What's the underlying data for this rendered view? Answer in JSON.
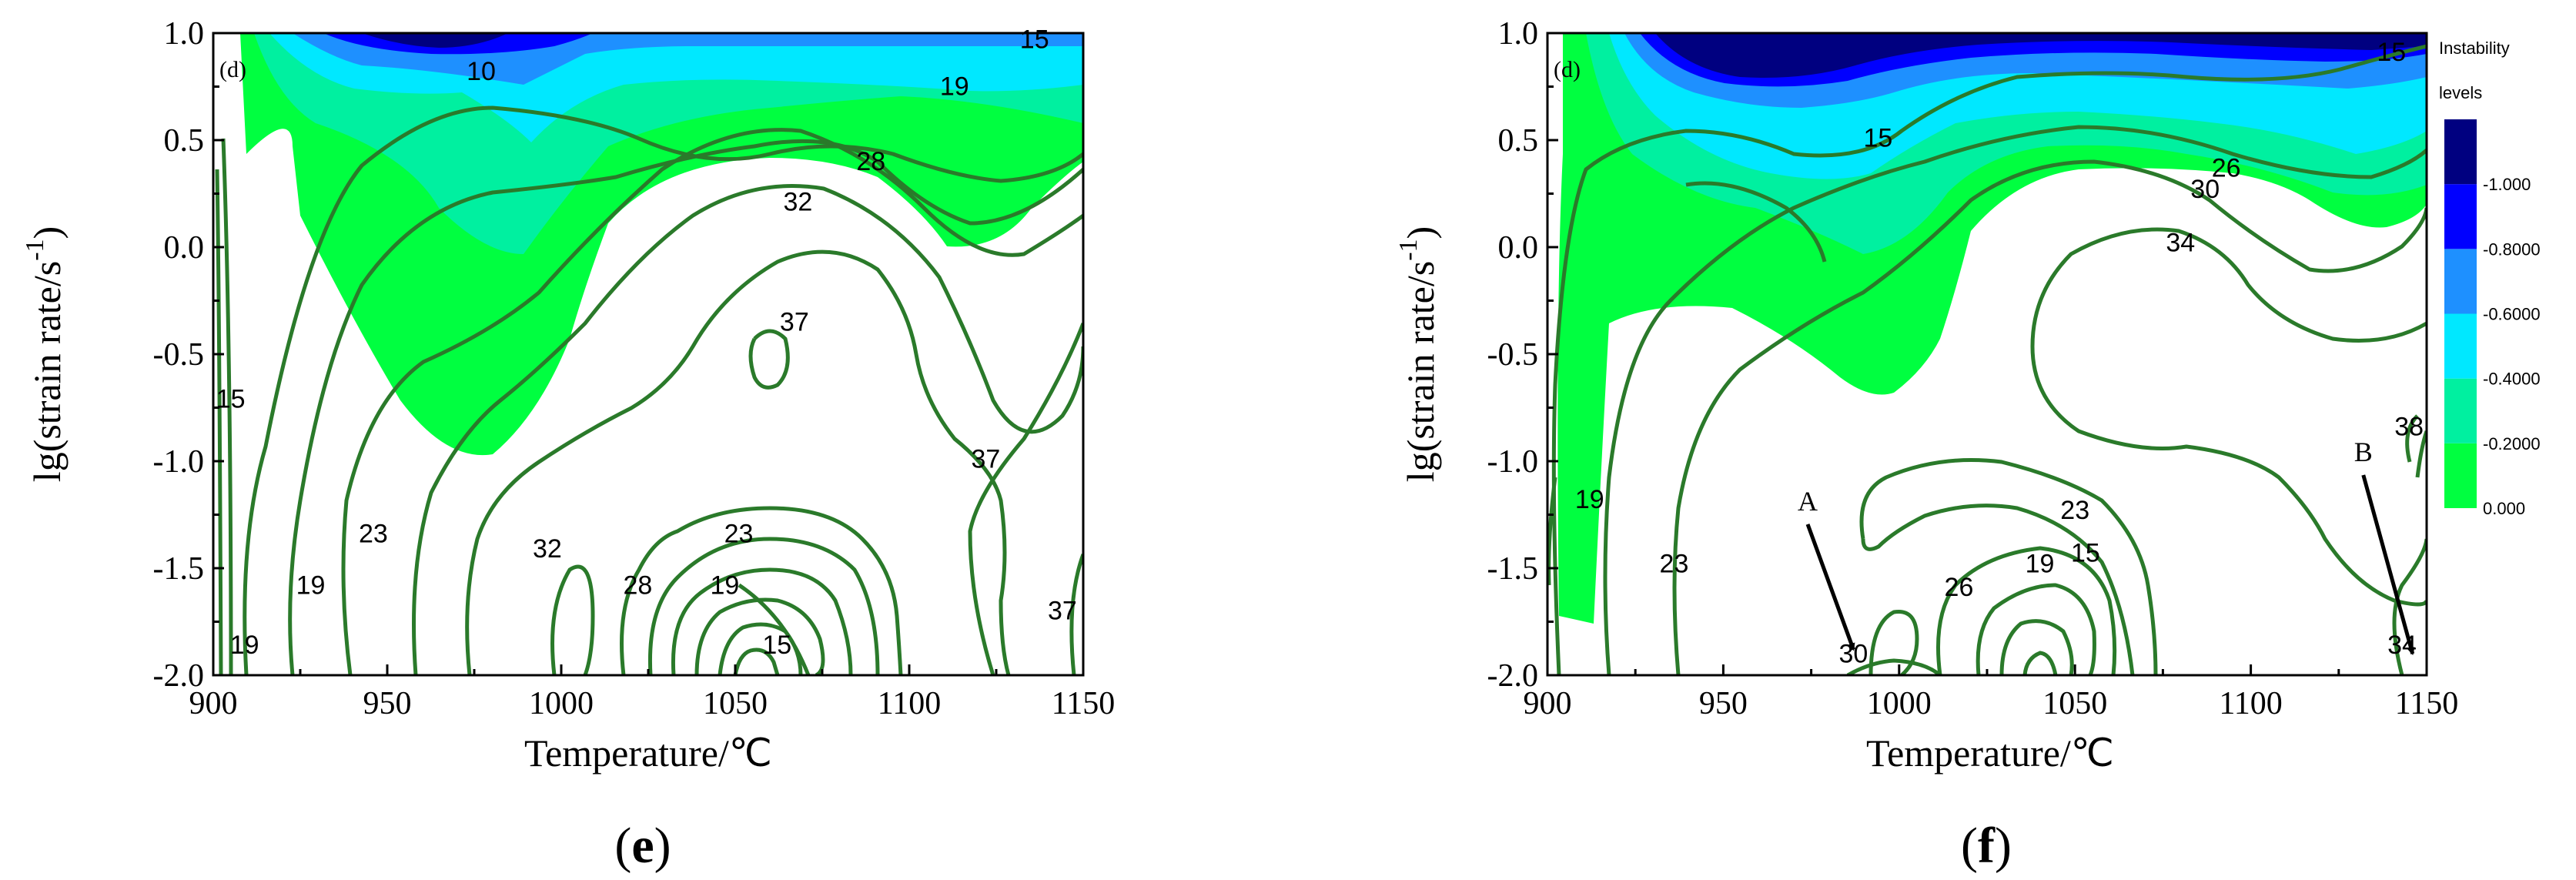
{
  "figure": {
    "panels": [
      {
        "caption_open": "(",
        "caption_letter": "e",
        "caption_close": ")",
        "inset_label": "(d)"
      },
      {
        "caption_open": "(",
        "caption_letter": "f",
        "caption_close": ")",
        "inset_label": "(d)",
        "legend_title_line1": "Instability",
        "legend_title_line2": "levels",
        "annotations": [
          "A",
          "B"
        ]
      }
    ]
  },
  "colors": {
    "contour_line": "#2a7a2a",
    "background": "#ffffff",
    "instability_scale": [
      "#00ff40",
      "#00f0a0",
      "#00e8ff",
      "#1e90ff",
      "#0000ff",
      "#000080"
    ]
  },
  "chart_data": [
    {
      "type": "contour",
      "xlabel": "Temperature/℃",
      "ylabel": "lg(strain rate/s-1)",
      "xlim": [
        900,
        1150
      ],
      "ylim": [
        -2.0,
        1.0
      ],
      "x_ticks": [
        "900",
        "950",
        "1000",
        "1050",
        "1100",
        "1150"
      ],
      "y_ticks": [
        "1.0",
        "0.5",
        "0.0",
        "-0.5",
        "-1.0",
        "-1.5",
        "-2.0"
      ],
      "contour_labels": [
        {
          "text": "10",
          "x": 977,
          "y": 0.78
        },
        {
          "text": "15",
          "x": 1136,
          "y": 0.93
        },
        {
          "text": "19",
          "x": 1113,
          "y": 0.71
        },
        {
          "text": "28",
          "x": 1089,
          "y": 0.36
        },
        {
          "text": "32",
          "x": 1068,
          "y": 0.17
        },
        {
          "text": "37",
          "x": 1067,
          "y": -0.39
        },
        {
          "text": "15",
          "x": 905,
          "y": -0.75
        },
        {
          "text": "37",
          "x": 1122,
          "y": -1.03
        },
        {
          "text": "23",
          "x": 946,
          "y": -1.38
        },
        {
          "text": "32",
          "x": 996,
          "y": -1.45
        },
        {
          "text": "23",
          "x": 1051,
          "y": -1.38
        },
        {
          "text": "19",
          "x": 928,
          "y": -1.62
        },
        {
          "text": "28",
          "x": 1022,
          "y": -1.62
        },
        {
          "text": "19",
          "x": 1047,
          "y": -1.62
        },
        {
          "text": "37",
          "x": 1144,
          "y": -1.74
        },
        {
          "text": "19",
          "x": 909,
          "y": -1.9
        },
        {
          "text": "15",
          "x": 1062,
          "y": -1.9
        }
      ],
      "unstable_domain_shown": true
    },
    {
      "type": "contour",
      "xlabel": "Temperature/℃",
      "ylabel": "lg(strain rate/s-1)",
      "xlim": [
        900,
        1150
      ],
      "ylim": [
        -2.0,
        1.0
      ],
      "x_ticks": [
        "900",
        "950",
        "1000",
        "1050",
        "1100",
        "1150"
      ],
      "y_ticks": [
        "1.0",
        "0.5",
        "0.0",
        "-0.5",
        "-1.0",
        "-1.5",
        "-2.0"
      ],
      "legend": {
        "title": "Instability levels",
        "levels": [
          "0.000",
          "-0.2000",
          "-0.4000",
          "-0.6000",
          "-0.8000",
          "-1.000"
        ]
      },
      "contour_labels": [
        {
          "text": "15",
          "x": 1140,
          "y": 0.87
        },
        {
          "text": "15",
          "x": 994,
          "y": 0.47
        },
        {
          "text": "26",
          "x": 1093,
          "y": 0.33
        },
        {
          "text": "30",
          "x": 1087,
          "y": 0.23
        },
        {
          "text": "34",
          "x": 1080,
          "y": -0.02
        },
        {
          "text": "19",
          "x": 912,
          "y": -1.22
        },
        {
          "text": "23",
          "x": 936,
          "y": -1.52
        },
        {
          "text": "23",
          "x": 1050,
          "y": -1.27
        },
        {
          "text": "19",
          "x": 1040,
          "y": -1.52
        },
        {
          "text": "15",
          "x": 1053,
          "y": -1.47
        },
        {
          "text": "26",
          "x": 1017,
          "y": -1.63
        },
        {
          "text": "30",
          "x": 987,
          "y": -1.94
        },
        {
          "text": "34",
          "x": 1143,
          "y": -1.9
        },
        {
          "text": "38",
          "x": 1145,
          "y": -0.88
        }
      ],
      "annotations": [
        {
          "text": "A",
          "x": 974,
          "y": -1.23,
          "points_to_x": 987,
          "points_to_y": -1.88
        },
        {
          "text": "B",
          "x": 1132,
          "y": -1.0,
          "points_to_x": 1146,
          "points_to_y": -1.9
        }
      ],
      "unstable_domain_shown": true
    }
  ]
}
